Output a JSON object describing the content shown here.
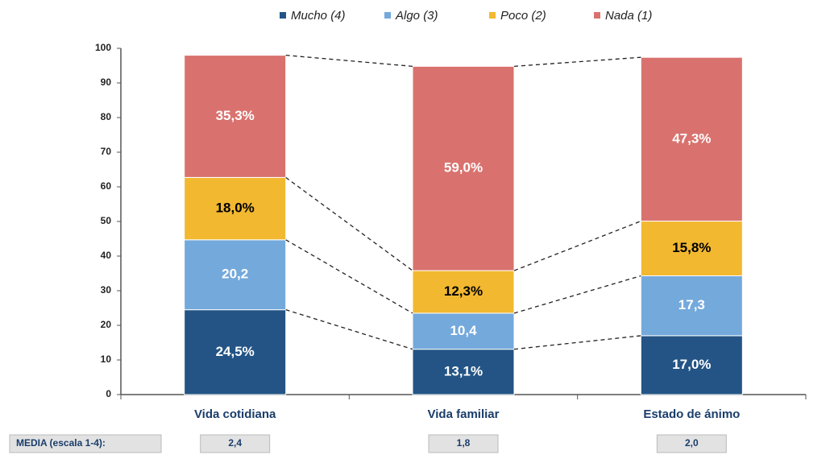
{
  "chart_data": {
    "type": "stacked_bar",
    "categories": [
      "Vida cotidiana",
      "Vida familiar",
      "Estado de ánimo"
    ],
    "series": [
      {
        "name": "Mucho (4)",
        "color": "#235485",
        "label_color": "#ffffff",
        "values": [
          24.5,
          13.1,
          17.0
        ],
        "value_labels": [
          "24,5%",
          "13,1%",
          "17,0%"
        ]
      },
      {
        "name": "Algo (3)",
        "color": "#74a9dc",
        "label_color": "#ffffff",
        "values": [
          20.2,
          10.4,
          17.3
        ],
        "value_labels": [
          "20,2",
          "10,4",
          "17,3"
        ]
      },
      {
        "name": "Poco (2)",
        "color": "#f2b830",
        "label_color": "#000000",
        "values": [
          18.0,
          12.3,
          15.8
        ],
        "value_labels": [
          "18,0%",
          "12,3%",
          "15,8%"
        ]
      },
      {
        "name": "Nada (1)",
        "color": "#d9726e",
        "label_color": "#ffffff",
        "values": [
          35.3,
          59.0,
          47.3
        ],
        "value_labels": [
          "35,3%",
          "59,0%",
          "47,3%"
        ]
      }
    ],
    "ylim": [
      0,
      100
    ],
    "yticks": [
      0,
      10,
      20,
      30,
      40,
      50,
      60,
      70,
      80,
      90,
      100
    ],
    "media": {
      "label": "MEDIA (escala 1-4):",
      "values": [
        2.4,
        1.8,
        2.0
      ],
      "value_labels": [
        "2,4",
        "1,8",
        "2,0"
      ]
    }
  }
}
